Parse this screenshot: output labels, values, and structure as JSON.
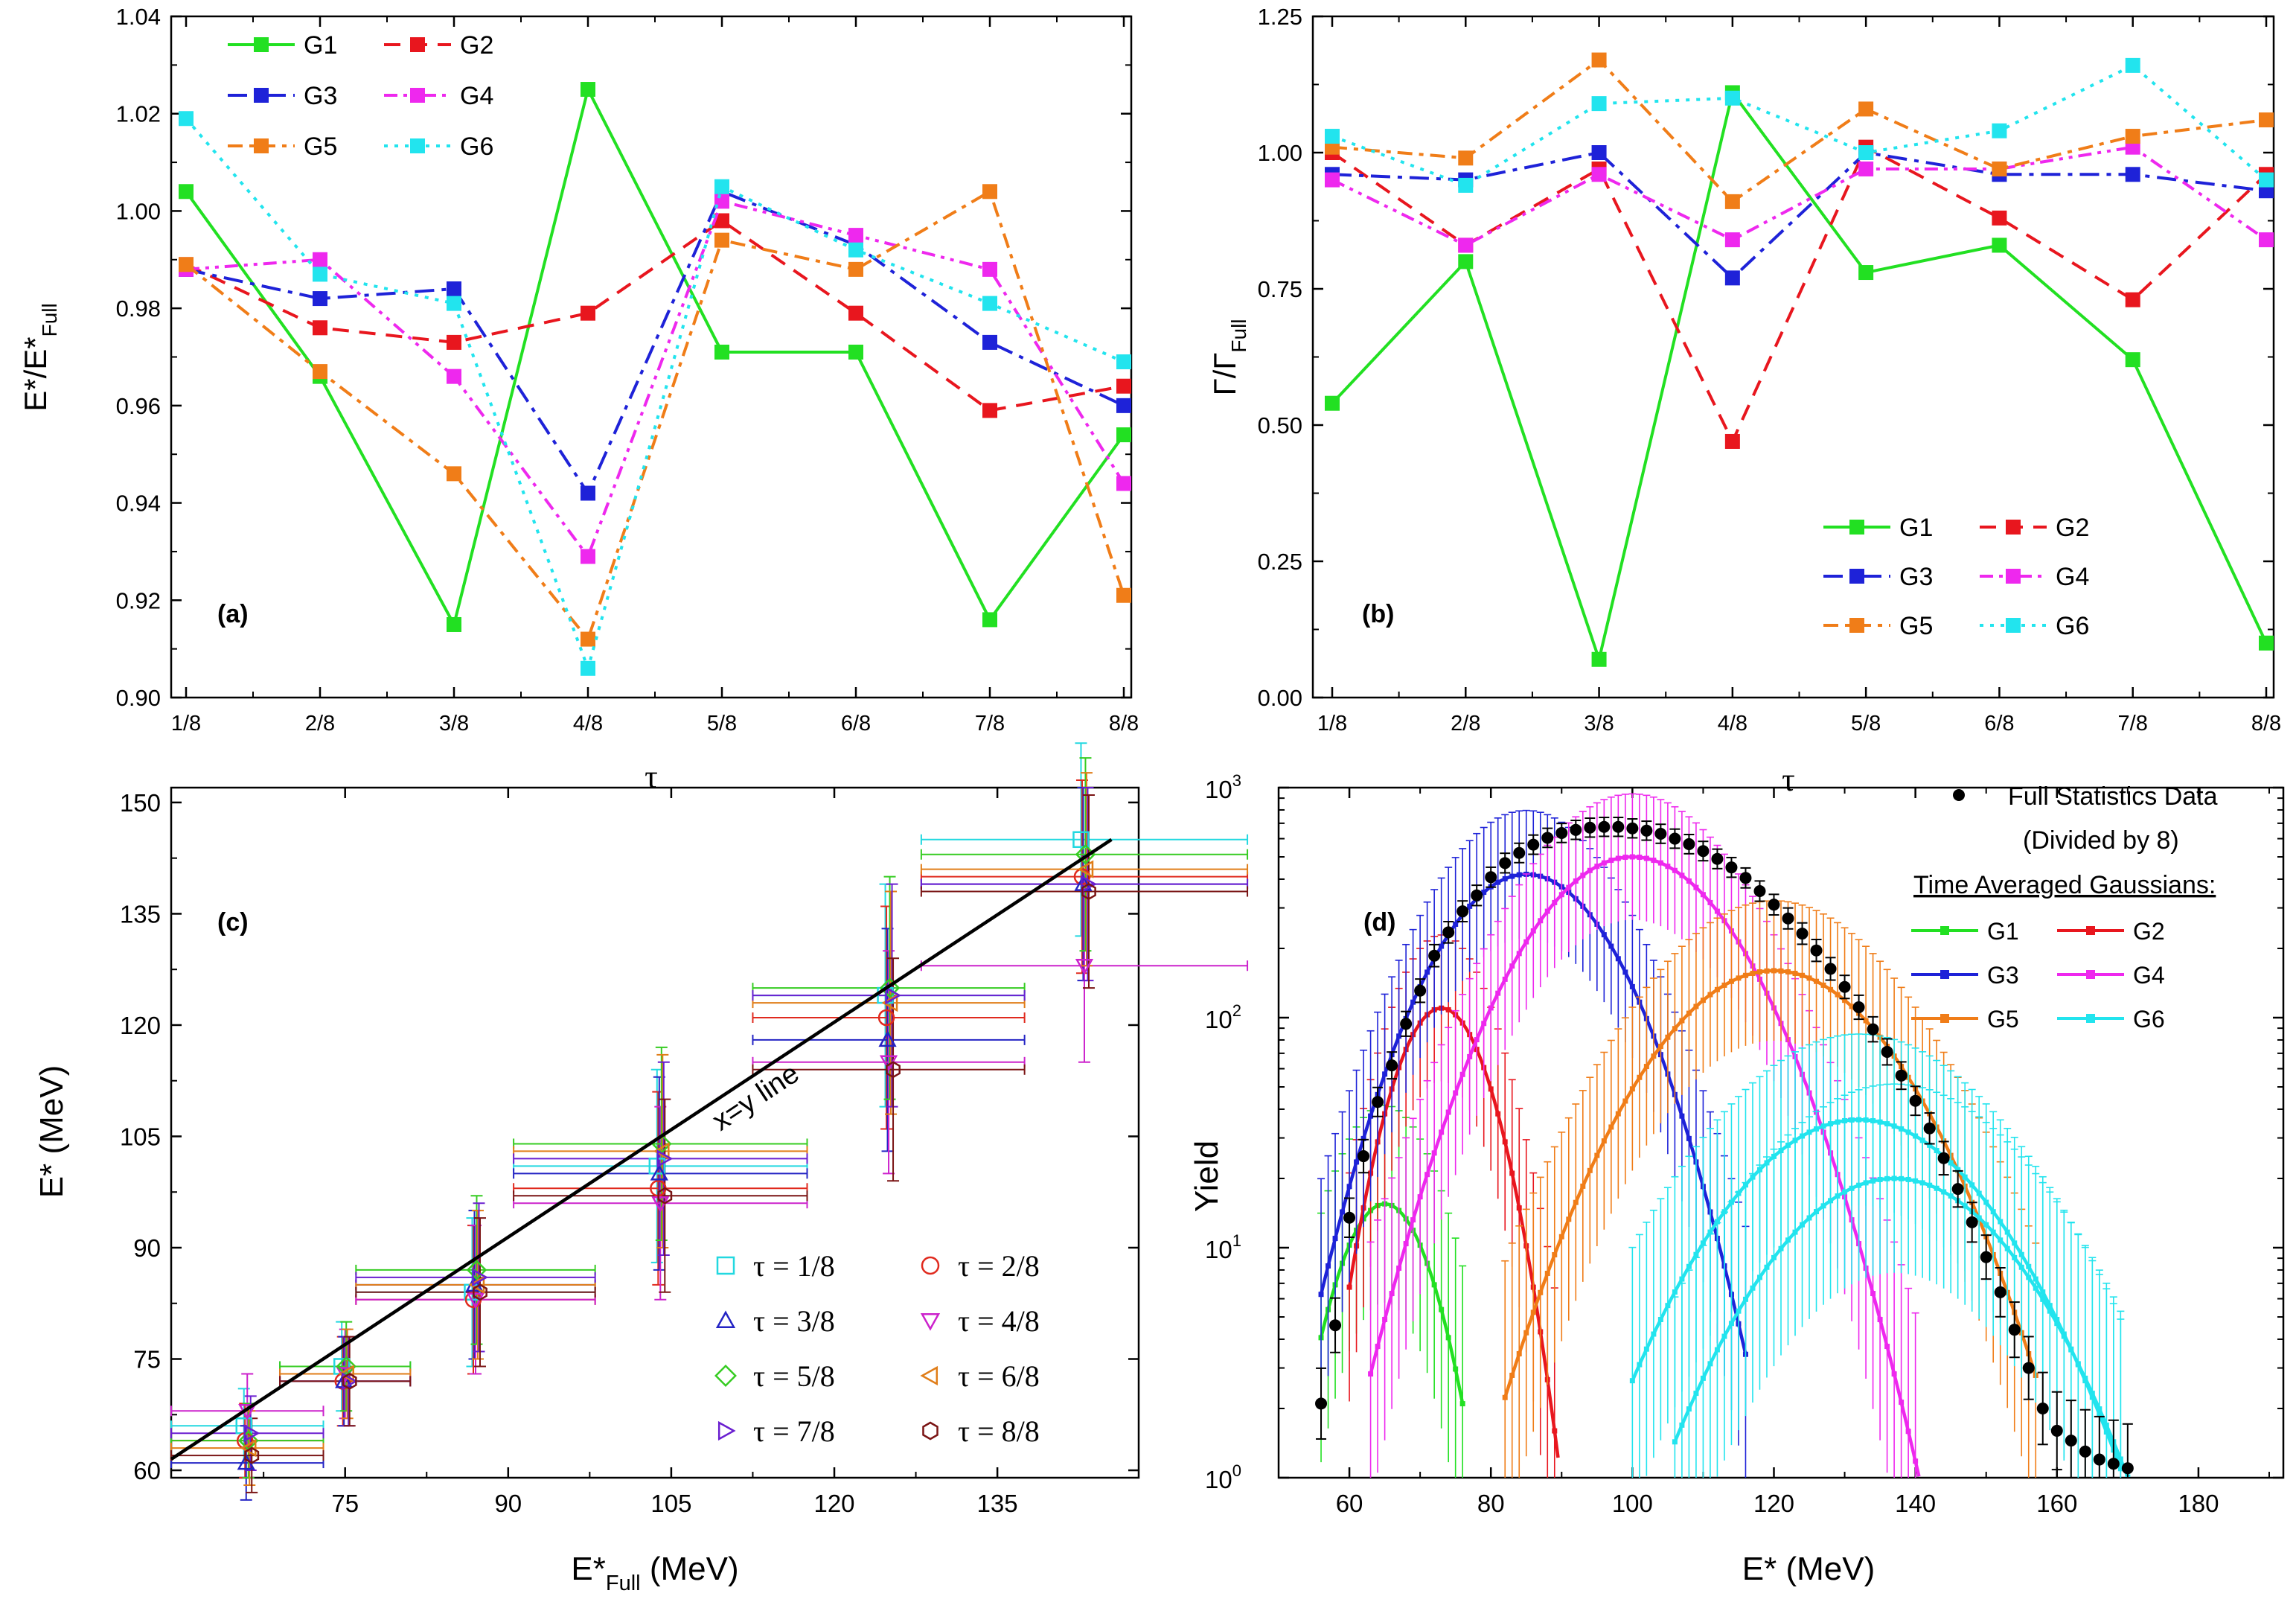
{
  "series_colors": {
    "G1": "#22e022",
    "G2": "#e8161e",
    "G3": "#1e22d8",
    "G4": "#ee28ee",
    "G5": "#f07d18",
    "G6": "#22e4ee"
  },
  "tau_colors": {
    "t1": "#22d8e0",
    "t2": "#e02a1e",
    "t3": "#2424c4",
    "t4": "#cc22cc",
    "t5": "#36cc22",
    "t6": "#e07d18",
    "t7": "#6a1fd0",
    "t8": "#7a1414"
  },
  "chart_data": [
    {
      "id": "a",
      "type": "line",
      "panel_label": "(a)",
      "xlabel": "τ",
      "ylabel_main": "E*/E*",
      "ylabel_sub": "Full",
      "categories": [
        "1/8",
        "2/8",
        "3/8",
        "4/8",
        "5/8",
        "6/8",
        "7/8",
        "8/8"
      ],
      "ylim": [
        0.9,
        1.04
      ],
      "yticks": [
        "0.90",
        "0.92",
        "0.94",
        "0.96",
        "0.98",
        "1.00",
        "1.02",
        "1.04"
      ],
      "legend_position": "top-left",
      "series": [
        {
          "name": "G1",
          "values": [
            1.004,
            0.966,
            0.915,
            1.025,
            0.971,
            0.971,
            0.916,
            0.954
          ]
        },
        {
          "name": "G2",
          "values": [
            0.989,
            0.976,
            0.973,
            0.979,
            0.998,
            0.979,
            0.959,
            0.964
          ]
        },
        {
          "name": "G3",
          "values": [
            0.988,
            0.982,
            0.984,
            0.942,
            1.004,
            0.993,
            0.973,
            0.96
          ]
        },
        {
          "name": "G4",
          "values": [
            0.988,
            0.99,
            0.966,
            0.929,
            1.002,
            0.995,
            0.988,
            0.944
          ]
        },
        {
          "name": "G5",
          "values": [
            0.989,
            0.967,
            0.946,
            0.912,
            0.994,
            0.988,
            1.004,
            0.921
          ]
        },
        {
          "name": "G6",
          "values": [
            1.019,
            0.987,
            0.981,
            0.906,
            1.005,
            0.992,
            0.981,
            0.969
          ]
        }
      ]
    },
    {
      "id": "b",
      "type": "line",
      "panel_label": "(b)",
      "xlabel": "τ",
      "ylabel_main": "Γ/Γ",
      "ylabel_sub": "Full",
      "categories": [
        "1/8",
        "2/8",
        "3/8",
        "4/8",
        "5/8",
        "6/8",
        "7/8",
        "8/8"
      ],
      "ylim": [
        0.0,
        1.25
      ],
      "yticks": [
        "0.00",
        "0.25",
        "0.50",
        "0.75",
        "1.00",
        "1.25"
      ],
      "legend_position": "bottom-right",
      "series": [
        {
          "name": "G1",
          "values": [
            0.54,
            0.8,
            0.07,
            1.11,
            0.78,
            0.83,
            0.62,
            0.1
          ]
        },
        {
          "name": "G2",
          "values": [
            1.0,
            0.83,
            0.97,
            0.47,
            1.01,
            0.88,
            0.73,
            0.96
          ]
        },
        {
          "name": "G3",
          "values": [
            0.96,
            0.95,
            1.0,
            0.77,
            1.0,
            0.96,
            0.96,
            0.93
          ]
        },
        {
          "name": "G4",
          "values": [
            0.95,
            0.83,
            0.96,
            0.84,
            0.97,
            0.97,
            1.01,
            0.84
          ]
        },
        {
          "name": "G5",
          "values": [
            1.01,
            0.99,
            1.17,
            0.91,
            1.08,
            0.97,
            1.03,
            1.06
          ]
        },
        {
          "name": "G6",
          "values": [
            1.03,
            0.94,
            1.09,
            1.1,
            1.0,
            1.04,
            1.16,
            0.95
          ]
        }
      ]
    },
    {
      "id": "c",
      "type": "scatter",
      "panel_label": "(c)",
      "xlabel_main": "E*",
      "xlabel_sub": "Full",
      "xlabel_unit": " (MeV)",
      "ylabel": "E* (MeV)",
      "xlim": [
        59,
        148
      ],
      "ylim": [
        59,
        152
      ],
      "xticks": [
        "75",
        "90",
        "105",
        "120",
        "135"
      ],
      "yticks": [
        "60",
        "75",
        "90",
        "105",
        "120",
        "135",
        "150"
      ],
      "line_label": "x=y line",
      "line": {
        "x": [
          59,
          145.5
        ],
        "y": [
          61.5,
          145
        ]
      },
      "groups": [
        {
          "x": 66,
          "xerr": 7,
          "yerr": 5
        },
        {
          "x": 75,
          "xerr": 6,
          "yerr": 6
        },
        {
          "x": 87,
          "xerr": 11,
          "yerr": 10
        },
        {
          "x": 104,
          "xerr": 13.5,
          "yerr": 13
        },
        {
          "x": 125,
          "xerr": 12.5,
          "yerr": 15
        },
        {
          "x": 143,
          "xerr": 15,
          "yerr": 13
        }
      ],
      "legend_position": "bottom-right",
      "series": [
        {
          "name": "τ = 1/8",
          "marker": "square",
          "color_key": "t1",
          "y": [
            66,
            74,
            84,
            101,
            124,
            145
          ]
        },
        {
          "name": "τ = 2/8",
          "marker": "circle",
          "color_key": "t2",
          "y": [
            64,
            72,
            83,
            98,
            121,
            140
          ]
        },
        {
          "name": "τ = 3/8",
          "marker": "triangle-up",
          "color_key": "t3",
          "y": [
            61,
            72,
            85,
            100,
            118,
            139
          ]
        },
        {
          "name": "τ = 4/8",
          "marker": "triangle-down",
          "color_key": "t4",
          "y": [
            68,
            73,
            83,
            96,
            115,
            128
          ]
        },
        {
          "name": "τ = 5/8",
          "marker": "diamond",
          "color_key": "t5",
          "y": [
            64,
            74,
            87,
            104,
            125,
            143
          ]
        },
        {
          "name": "τ = 6/8",
          "marker": "triangle-left",
          "color_key": "t6",
          "y": [
            63,
            73,
            85,
            103,
            123,
            141
          ]
        },
        {
          "name": "τ = 7/8",
          "marker": "triangle-right",
          "color_key": "t7",
          "y": [
            65,
            72,
            86,
            102,
            124,
            139
          ]
        },
        {
          "name": "τ = 8/8",
          "marker": "hexagon",
          "color_key": "t8",
          "y": [
            62,
            72,
            84,
            97,
            114,
            138
          ]
        }
      ]
    },
    {
      "id": "d",
      "type": "line",
      "scale_y": "log",
      "panel_label": "(d)",
      "xlabel": "E* (MeV)",
      "ylabel": "Yield",
      "xlim": [
        50,
        192
      ],
      "ylim": [
        1,
        1000
      ],
      "xticks": [
        "60",
        "80",
        "100",
        "120",
        "140",
        "160",
        "180"
      ],
      "yticks": [
        {
          "base": "10",
          "exp": "0"
        },
        {
          "base": "10",
          "exp": "1"
        },
        {
          "base": "10",
          "exp": "2"
        },
        {
          "base": "10",
          "exp": "3"
        }
      ],
      "legend_data_label": "Full Statistics Data",
      "legend_data_note": "(Divided by 8)",
      "legend_title": "Time Averaged Gaussians:",
      "legend_position": "top-right",
      "data_points": {
        "x": [
          56,
          58,
          60,
          62,
          64,
          66,
          68,
          70,
          72,
          74,
          76,
          78,
          80,
          82,
          84,
          86,
          88,
          90,
          92,
          94,
          96,
          98,
          100,
          102,
          104,
          106,
          108,
          110,
          112,
          114,
          116,
          118,
          120,
          122,
          124,
          126,
          128,
          130,
          132,
          134,
          136,
          138,
          140,
          142,
          144,
          146,
          148,
          150,
          152,
          154,
          156,
          158,
          160,
          162,
          164,
          166,
          168,
          170
        ],
        "y": [
          2.1,
          4.6,
          13.5,
          25,
          43,
          62,
          94,
          131,
          186,
          235,
          290,
          340,
          408,
          470,
          520,
          565,
          605,
          635,
          655,
          670,
          675,
          675,
          665,
          650,
          630,
          600,
          568,
          530,
          490,
          450,
          405,
          355,
          310,
          270,
          232,
          196,
          163,
          136,
          111,
          89,
          71,
          56,
          43.5,
          33,
          24.5,
          18,
          12.9,
          9.1,
          6.4,
          4.4,
          3.0,
          2.0,
          1.6,
          1.45,
          1.3,
          1.2,
          1.15,
          1.1
        ]
      },
      "gaussians": [
        {
          "name": "G1",
          "color_key": "G1c",
          "peak": 15.5,
          "mu": 65,
          "sigma": 5.5,
          "range": [
            56,
            76
          ]
        },
        {
          "name": "G2",
          "color_key": "G2c",
          "peak": 110,
          "mu": 73,
          "sigma": 5.5,
          "range": [
            60,
            90
          ]
        },
        {
          "name": "G3",
          "color_key": "G3c",
          "peak": 420,
          "mu": 85,
          "sigma": 10,
          "range": [
            56,
            116
          ]
        },
        {
          "name": "G4",
          "color_key": "G4c",
          "peak": 500,
          "mu": 100,
          "sigma": 11.5,
          "range": [
            63,
            141
          ]
        },
        {
          "name": "G5",
          "color_key": "G5c",
          "peak": 160,
          "mu": 120,
          "sigma": 13,
          "range": [
            82,
            157
          ]
        },
        {
          "name": "G6",
          "color_key": "G6c",
          "peak": 36,
          "mu": 132,
          "sigma": 14,
          "range": [
            100,
            170
          ]
        },
        {
          "name": "",
          "color_key": "G6c",
          "peak": 20,
          "mu": 137,
          "sigma": 13.5,
          "range": [
            106,
            170
          ],
          "no_legend": true
        }
      ]
    }
  ]
}
